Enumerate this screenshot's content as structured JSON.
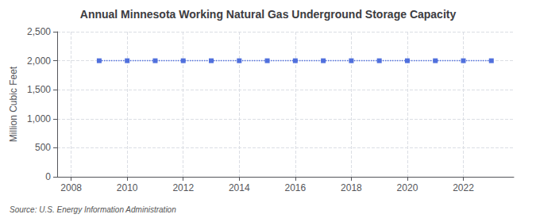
{
  "chart_data": {
    "type": "line",
    "title": "Annual Minnesota Working Natural Gas Underground Storage Capacity",
    "ylabel": "Million Cubic Feet",
    "source": "Source: U.S. Energy Information Administration",
    "x": [
      2009,
      2010,
      2011,
      2012,
      2013,
      2014,
      2015,
      2016,
      2017,
      2018,
      2019,
      2020,
      2021,
      2022,
      2023
    ],
    "values": [
      2000,
      2000,
      2000,
      2000,
      2000,
      2000,
      2000,
      2000,
      2000,
      2000,
      2000,
      2000,
      2000,
      2000,
      2000
    ],
    "marker": "square",
    "line_style": "dotted",
    "xlim": [
      2007.5,
      2023.8
    ],
    "xticks": [
      2008,
      2010,
      2012,
      2014,
      2016,
      2018,
      2020,
      2022
    ],
    "ylim": [
      0,
      2500
    ],
    "yticks": [
      0,
      500,
      {
        "value": 1000,
        "label": "1,000"
      },
      {
        "value": 1500,
        "label": "1,500"
      },
      {
        "value": 2000,
        "label": "2,000"
      },
      {
        "value": 2500,
        "label": "2,500"
      }
    ],
    "grid": true
  }
}
